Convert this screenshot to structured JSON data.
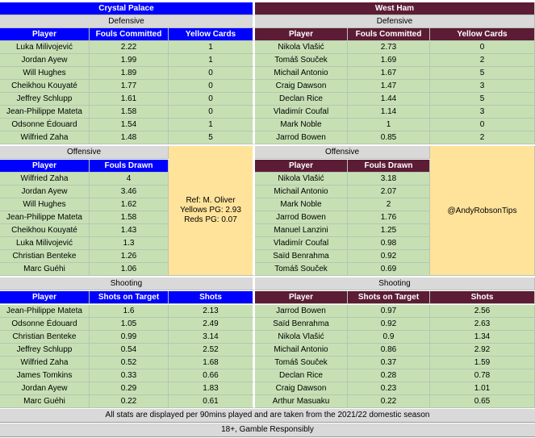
{
  "crystal_palace": {
    "team": "Crystal Palace",
    "defensive": {
      "section": "Defensive",
      "headers": [
        "Player",
        "Fouls Committed",
        "Yellow Cards"
      ],
      "rows": [
        [
          "Luka Milivojević",
          "2.22",
          "1"
        ],
        [
          "Jordan Ayew",
          "1.99",
          "1"
        ],
        [
          "Will Hughes",
          "1.89",
          "0"
        ],
        [
          "Cheikhou Kouyaté",
          "1.77",
          "0"
        ],
        [
          "Jeffrey Schlupp",
          "1.61",
          "0"
        ],
        [
          "Jean-Philippe Mateta",
          "1.58",
          "0"
        ],
        [
          "Odsonne Édouard",
          "1.54",
          "1"
        ],
        [
          "Wilfried Zaha",
          "1.48",
          "5"
        ]
      ]
    },
    "offensive": {
      "section": "Offensive",
      "headers": [
        "Player",
        "Fouls Drawn"
      ],
      "rows": [
        [
          "Wilfried Zaha",
          "4"
        ],
        [
          "Jordan Ayew",
          "3.46"
        ],
        [
          "Will Hughes",
          "1.62"
        ],
        [
          "Jean-Philippe Mateta",
          "1.58"
        ],
        [
          "Cheikhou Kouyaté",
          "1.43"
        ],
        [
          "Luka Milivojević",
          "1.3"
        ],
        [
          "Christian Benteke",
          "1.26"
        ],
        [
          "Marc Guéhi",
          "1.06"
        ]
      ]
    },
    "shooting": {
      "section": "Shooting",
      "headers": [
        "Player",
        "Shots on Target",
        "Shots"
      ],
      "rows": [
        [
          "Jean-Philippe Mateta",
          "1.6",
          "2.13"
        ],
        [
          "Odsonne Édouard",
          "1.05",
          "2.49"
        ],
        [
          "Christian Benteke",
          "0.99",
          "3.14"
        ],
        [
          "Jeffrey Schlupp",
          "0.54",
          "2.52"
        ],
        [
          "Wilfried Zaha",
          "0.52",
          "1.68"
        ],
        [
          "James Tomkins",
          "0.33",
          "0.66"
        ],
        [
          "Jordan Ayew",
          "0.29",
          "1.83"
        ],
        [
          "Marc Guéhi",
          "0.22",
          "0.61"
        ]
      ]
    }
  },
  "west_ham": {
    "team": "West Ham",
    "defensive": {
      "section": "Defensive",
      "headers": [
        "Player",
        "Fouls Committed",
        "Yellow Cards"
      ],
      "rows": [
        [
          "Nikola Vlašić",
          "2.73",
          "0"
        ],
        [
          "Tomáš Souček",
          "1.69",
          "2"
        ],
        [
          "Michail Antonio",
          "1.67",
          "5"
        ],
        [
          "Craig Dawson",
          "1.47",
          "3"
        ],
        [
          "Declan Rice",
          "1.44",
          "5"
        ],
        [
          "Vladimír Coufal",
          "1.14",
          "3"
        ],
        [
          "Mark Noble",
          "1",
          "0"
        ],
        [
          "Jarrod Bowen",
          "0.85",
          "2"
        ]
      ]
    },
    "offensive": {
      "section": "Offensive",
      "headers": [
        "Player",
        "Fouls Drawn"
      ],
      "rows": [
        [
          "Nikola Vlašić",
          "3.18"
        ],
        [
          "Michail Antonio",
          "2.07"
        ],
        [
          "Mark Noble",
          "2"
        ],
        [
          "Jarrod Bowen",
          "1.76"
        ],
        [
          "Manuel Lanzini",
          "1.25"
        ],
        [
          "Vladimír Coufal",
          "0.98"
        ],
        [
          "Saïd Benrahma",
          "0.92"
        ],
        [
          "Tomáš Souček",
          "0.69"
        ]
      ]
    },
    "shooting": {
      "section": "Shooting",
      "headers": [
        "Player",
        "Shots on Target",
        "Shots"
      ],
      "rows": [
        [
          "Jarrod Bowen",
          "0.97",
          "2.56"
        ],
        [
          "Saïd Benrahma",
          "0.92",
          "2.63"
        ],
        [
          "Nikola Vlašić",
          "0.9",
          "1.34"
        ],
        [
          "Michail Antonio",
          "0.86",
          "2.92"
        ],
        [
          "Tomáš Souček",
          "0.37",
          "1.59"
        ],
        [
          "Declan Rice",
          "0.28",
          "0.78"
        ],
        [
          "Craig Dawson",
          "0.23",
          "1.01"
        ],
        [
          "Arthur Masuaku",
          "0.22",
          "0.65"
        ]
      ]
    }
  },
  "referee": {
    "lines": [
      "Ref: M. Oliver",
      "Yellows PG: 2.93",
      "Reds PG: 0.07"
    ]
  },
  "handle": "@AndyRobsonTips",
  "footer": {
    "note": "All stats are displayed per 90mins played and are taken from the 2021/22 domestic season",
    "disclaimer": "18+, Gamble Responsibly"
  },
  "colors": {
    "crystal_palace_header": "#0000ff",
    "west_ham_header": "#5c1c35",
    "data_row": "#c6e0b4",
    "section_label": "#d9d9d9",
    "info_box": "#ffe39a"
  }
}
